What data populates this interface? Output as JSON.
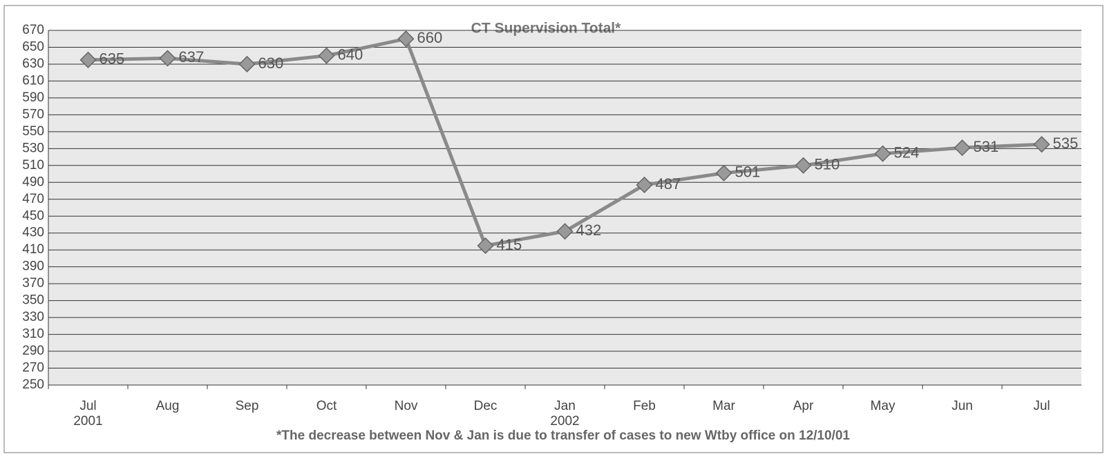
{
  "chart_data": {
    "type": "line",
    "title": "CT Supervision Total*",
    "categories": [
      "Jul 2001",
      "Aug",
      "Sep",
      "Oct",
      "Nov",
      "Dec",
      "Jan 2002",
      "Feb",
      "Mar",
      "Apr",
      "May",
      "Jun",
      "Jul"
    ],
    "series": [
      {
        "name": "CT Supervision Total",
        "color": "#8a8a8a",
        "values": [
          635,
          637,
          630,
          640,
          660,
          415,
          432,
          487,
          501,
          510,
          524,
          531,
          535
        ]
      }
    ],
    "ylim": [
      250,
      670
    ],
    "yticks": [
      250,
      270,
      290,
      310,
      330,
      350,
      370,
      390,
      410,
      430,
      450,
      470,
      490,
      510,
      530,
      550,
      570,
      590,
      610,
      630,
      650,
      670
    ],
    "grid": true,
    "annotation": "*The decrease between Nov & Jan is due to transfer of cases to new Wtby office on 12/10/01"
  }
}
